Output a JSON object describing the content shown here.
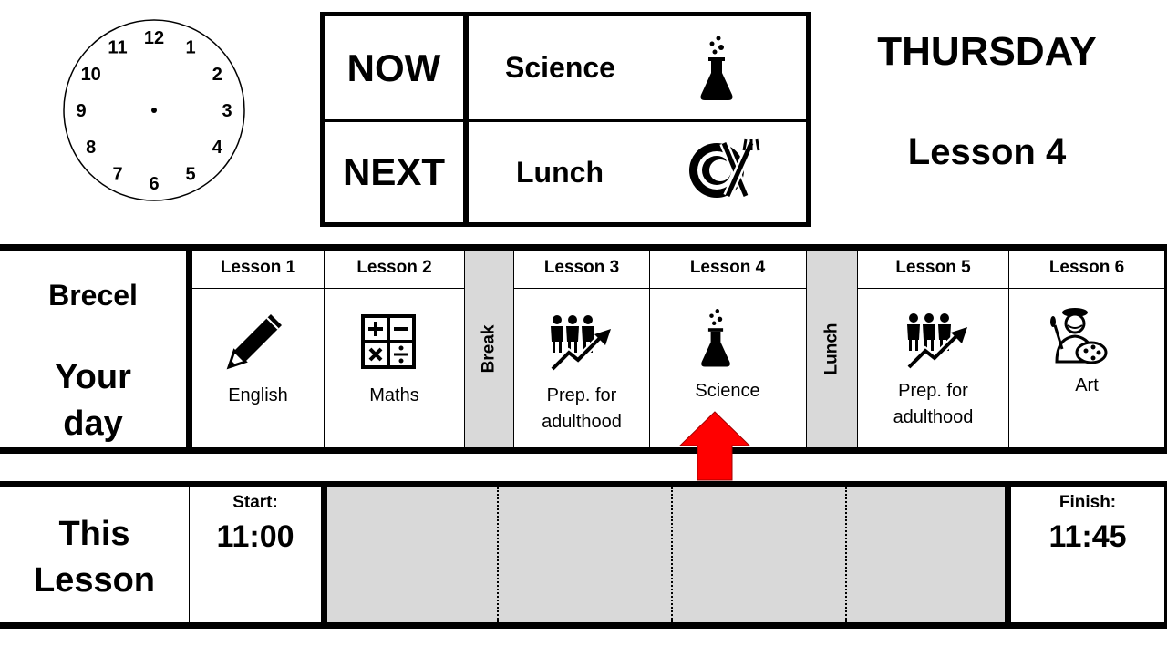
{
  "clock": {
    "numbers": [
      "12",
      "1",
      "2",
      "3",
      "4",
      "5",
      "6",
      "7",
      "8",
      "9",
      "10",
      "11"
    ]
  },
  "now_next": {
    "now_label": "NOW",
    "now_subject": "Science",
    "now_icon": "flask-icon",
    "next_label": "NEXT",
    "next_subject": "Lunch",
    "next_icon": "plate-cutlery-icon"
  },
  "day": {
    "weekday": "THURSDAY",
    "current_lesson": "Lesson 4"
  },
  "student": {
    "name": "Brecel",
    "title_line1": "Your",
    "title_line2": "day"
  },
  "timetable": {
    "lessons": [
      {
        "header": "Lesson 1",
        "subject": "English",
        "icon": "pencil-icon"
      },
      {
        "header": "Lesson 2",
        "subject": "Maths",
        "icon": "calculator-icon"
      },
      {
        "header": "Lesson 3",
        "subject_line1": "Prep. for",
        "subject_line2": "adulthood",
        "icon": "people-growth-icon"
      },
      {
        "header": "Lesson 4",
        "subject": "Science",
        "icon": "flask-icon"
      },
      {
        "header": "Lesson 5",
        "subject_line1": "Prep. for",
        "subject_line2": "adulthood",
        "icon": "people-growth-icon"
      },
      {
        "header": "Lesson 6",
        "subject": "Art",
        "icon": "artist-icon"
      }
    ],
    "break_label": "Break",
    "lunch_label": "Lunch",
    "current_marker": "up-arrow-icon"
  },
  "this_lesson": {
    "title_line1": "This",
    "title_line2": "Lesson",
    "start_label": "Start:",
    "start_time": "11:00",
    "finish_label": "Finish:",
    "finish_time": "11:45",
    "progress_segments": 4
  },
  "colors": {
    "grey_fill": "#d9d9d9",
    "arrow_red": "#ff0000",
    "border": "#000000"
  }
}
